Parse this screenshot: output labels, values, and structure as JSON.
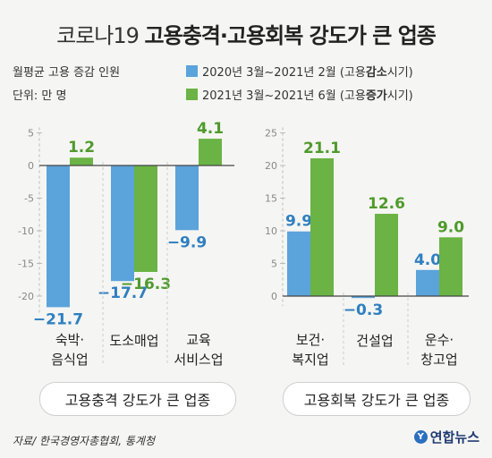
{
  "title": {
    "prefix": "코로나19",
    "main": "고용충격·고용회복 강도가 큰 업종"
  },
  "meta": {
    "measure": "월평균 고용 증감 인원",
    "unit": "단위: 만 명"
  },
  "legend": [
    {
      "pre": "2020년 3월~2021년 2월 (고용 ",
      "emph": "감소",
      "post": " 시기)",
      "color": "#5ba3db"
    },
    {
      "pre": "2021년 3월~2021년 6월 (고용 ",
      "emph": "증가",
      "post": " 시기)",
      "color": "#6ab344"
    }
  ],
  "chart_data": [
    {
      "type": "bar",
      "title": "고용충격 강도가 큰 업종",
      "categories": [
        [
          "숙박·",
          "음식업"
        ],
        [
          "도소매업"
        ],
        [
          "교육",
          "서비스업"
        ]
      ],
      "series": [
        {
          "name": "2020년 3월~2021년 2월 (고용 감소 시기)",
          "values": [
            -21.7,
            -17.7,
            -9.9
          ],
          "labels": [
            "−21.7",
            "−17.7",
            "−9.9"
          ]
        },
        {
          "name": "2021년 3월~2021년 6월 (고용 증가 시기)",
          "values": [
            1.2,
            -16.3,
            4.1
          ],
          "labels": [
            "1.2",
            "−16.3",
            "4.1"
          ]
        }
      ],
      "yticks": [
        5,
        0,
        -5,
        -10,
        -15,
        -20
      ],
      "ylim": [
        -22,
        5
      ]
    },
    {
      "type": "bar",
      "title": "고용회복 강도가 큰 업종",
      "categories": [
        [
          "보건·",
          "복지업"
        ],
        [
          "건설업"
        ],
        [
          "운수·",
          "창고업"
        ]
      ],
      "series": [
        {
          "name": "2020년 3월~2021년 2월 (고용 감소 시기)",
          "values": [
            9.9,
            -0.3,
            4.0
          ],
          "labels": [
            "9.9",
            "−0.3",
            "4.0"
          ]
        },
        {
          "name": "2021년 3월~2021년 6월 (고용 증가 시기)",
          "values": [
            21.1,
            12.6,
            9.0
          ],
          "labels": [
            "21.1",
            "12.6",
            "9.0"
          ]
        }
      ],
      "yticks": [
        25,
        20,
        15,
        10,
        5,
        0
      ],
      "ylim": [
        -1,
        25
      ]
    }
  ],
  "source": "자료/ 한국경영자총협회, 통계청",
  "logo": "연합뉴스"
}
